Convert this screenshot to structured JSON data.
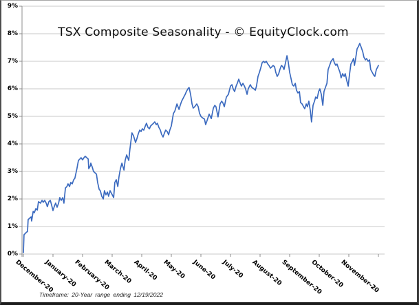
{
  "colors": {
    "line": "#3B6ABF",
    "grid": "#C9C9C9",
    "axis": "#8C8C8C",
    "title_text": "#0D0D0D",
    "label_text": "#000000",
    "footnote_text": "#1A1A1A"
  },
  "chart_data": {
    "type": "line",
    "title": "TSX Composite Seasonality - © EquityClock.com",
    "footnote": "Timeframe: 20-Year range ending 12/19/2022",
    "x_tick_labels": [
      "December-20",
      "January-20",
      "February-20",
      "March-20",
      "April-20",
      "May-20",
      "June-20",
      "July-20",
      "August-20",
      "September-20",
      "October-20",
      "November-20"
    ],
    "y_tick_labels": [
      "0%",
      "1%",
      "2%",
      "3%",
      "4%",
      "5%",
      "6%",
      "7%",
      "8%",
      "9%"
    ],
    "xlim": [
      0,
      12
    ],
    "ylim": [
      0,
      9
    ],
    "x_unit": "month index, 0 = start of December through 12 = end of November (fraction = position within month)",
    "y_unit": "%",
    "grid": "horizontal",
    "legend": "none",
    "points": [
      [
        0,
        0.05
      ],
      [
        0.02,
        0.7
      ],
      [
        0.09,
        0.78
      ],
      [
        0.14,
        0.82
      ],
      [
        0.16,
        1.25
      ],
      [
        0.21,
        1.3
      ],
      [
        0.26,
        1.35
      ],
      [
        0.28,
        1.2
      ],
      [
        0.33,
        1.55
      ],
      [
        0.37,
        1.5
      ],
      [
        0.42,
        1.65
      ],
      [
        0.47,
        1.6
      ],
      [
        0.51,
        1.9
      ],
      [
        0.58,
        1.85
      ],
      [
        0.63,
        1.95
      ],
      [
        0.67,
        1.88
      ],
      [
        0.72,
        1.95
      ],
      [
        0.77,
        1.85
      ],
      [
        0.81,
        1.72
      ],
      [
        0.86,
        1.9
      ],
      [
        0.91,
        1.95
      ],
      [
        0.95,
        1.8
      ],
      [
        1.0,
        1.58
      ],
      [
        1.05,
        1.75
      ],
      [
        1.09,
        1.85
      ],
      [
        1.14,
        1.7
      ],
      [
        1.19,
        1.85
      ],
      [
        1.23,
        2.05
      ],
      [
        1.28,
        1.95
      ],
      [
        1.33,
        2.05
      ],
      [
        1.37,
        1.85
      ],
      [
        1.42,
        2.4
      ],
      [
        1.47,
        2.45
      ],
      [
        1.51,
        2.55
      ],
      [
        1.56,
        2.45
      ],
      [
        1.6,
        2.6
      ],
      [
        1.65,
        2.55
      ],
      [
        1.7,
        2.7
      ],
      [
        1.74,
        2.75
      ],
      [
        1.81,
        3.1
      ],
      [
        1.86,
        3.4
      ],
      [
        1.91,
        3.45
      ],
      [
        1.95,
        3.5
      ],
      [
        2.0,
        3.42
      ],
      [
        2.05,
        3.5
      ],
      [
        2.09,
        3.55
      ],
      [
        2.14,
        3.5
      ],
      [
        2.19,
        3.45
      ],
      [
        2.21,
        3.1
      ],
      [
        2.26,
        3.2
      ],
      [
        2.28,
        3.3
      ],
      [
        2.33,
        3.15
      ],
      [
        2.37,
        3.0
      ],
      [
        2.42,
        2.95
      ],
      [
        2.47,
        2.9
      ],
      [
        2.51,
        2.6
      ],
      [
        2.56,
        2.35
      ],
      [
        2.6,
        2.3
      ],
      [
        2.65,
        2.1
      ],
      [
        2.7,
        2.0
      ],
      [
        2.74,
        2.3
      ],
      [
        2.79,
        2.15
      ],
      [
        2.84,
        2.25
      ],
      [
        2.88,
        2.1
      ],
      [
        2.93,
        2.3
      ],
      [
        2.98,
        2.2
      ],
      [
        3.05,
        2.05
      ],
      [
        3.09,
        2.6
      ],
      [
        3.14,
        2.7
      ],
      [
        3.19,
        2.45
      ],
      [
        3.23,
        2.8
      ],
      [
        3.28,
        3.1
      ],
      [
        3.33,
        3.3
      ],
      [
        3.4,
        3.05
      ],
      [
        3.44,
        3.4
      ],
      [
        3.49,
        3.6
      ],
      [
        3.56,
        3.4
      ],
      [
        3.6,
        3.8
      ],
      [
        3.67,
        4.4
      ],
      [
        3.72,
        4.3
      ],
      [
        3.79,
        4.05
      ],
      [
        3.84,
        4.2
      ],
      [
        3.88,
        4.35
      ],
      [
        3.93,
        4.5
      ],
      [
        3.98,
        4.45
      ],
      [
        4.02,
        4.55
      ],
      [
        4.07,
        4.5
      ],
      [
        4.12,
        4.65
      ],
      [
        4.16,
        4.75
      ],
      [
        4.21,
        4.6
      ],
      [
        4.26,
        4.55
      ],
      [
        4.3,
        4.65
      ],
      [
        4.35,
        4.7
      ],
      [
        4.4,
        4.75
      ],
      [
        4.44,
        4.8
      ],
      [
        4.49,
        4.7
      ],
      [
        4.53,
        4.75
      ],
      [
        4.58,
        4.6
      ],
      [
        4.63,
        4.5
      ],
      [
        4.67,
        4.35
      ],
      [
        4.72,
        4.25
      ],
      [
        4.77,
        4.4
      ],
      [
        4.81,
        4.5
      ],
      [
        4.86,
        4.45
      ],
      [
        4.91,
        4.33
      ],
      [
        4.95,
        4.5
      ],
      [
        5.0,
        4.65
      ],
      [
        5.07,
        5.1
      ],
      [
        5.12,
        5.2
      ],
      [
        5.19,
        5.45
      ],
      [
        5.26,
        5.25
      ],
      [
        5.3,
        5.4
      ],
      [
        5.35,
        5.55
      ],
      [
        5.42,
        5.7
      ],
      [
        5.47,
        5.8
      ],
      [
        5.51,
        5.9
      ],
      [
        5.56,
        6.0
      ],
      [
        5.6,
        6.05
      ],
      [
        5.65,
        5.8
      ],
      [
        5.7,
        5.45
      ],
      [
        5.74,
        5.3
      ],
      [
        5.79,
        5.35
      ],
      [
        5.86,
        5.45
      ],
      [
        5.91,
        5.35
      ],
      [
        5.95,
        5.12
      ],
      [
        6.0,
        5.0
      ],
      [
        6.05,
        4.95
      ],
      [
        6.12,
        4.9
      ],
      [
        6.16,
        4.7
      ],
      [
        6.21,
        4.85
      ],
      [
        6.28,
        5.08
      ],
      [
        6.35,
        4.92
      ],
      [
        6.42,
        5.3
      ],
      [
        6.47,
        5.4
      ],
      [
        6.51,
        5.35
      ],
      [
        6.58,
        4.98
      ],
      [
        6.65,
        5.45
      ],
      [
        6.7,
        5.55
      ],
      [
        6.74,
        5.5
      ],
      [
        6.79,
        5.35
      ],
      [
        6.86,
        5.7
      ],
      [
        6.93,
        5.8
      ],
      [
        7.0,
        6.1
      ],
      [
        7.05,
        6.15
      ],
      [
        7.09,
        6.0
      ],
      [
        7.14,
        5.9
      ],
      [
        7.19,
        6.1
      ],
      [
        7.23,
        6.2
      ],
      [
        7.28,
        6.35
      ],
      [
        7.33,
        6.2
      ],
      [
        7.37,
        6.1
      ],
      [
        7.42,
        6.2
      ],
      [
        7.47,
        6.1
      ],
      [
        7.51,
        6.0
      ],
      [
        7.56,
        5.8
      ],
      [
        7.6,
        6.0
      ],
      [
        7.67,
        6.15
      ],
      [
        7.72,
        6.05
      ],
      [
        7.79,
        6.0
      ],
      [
        7.84,
        5.95
      ],
      [
        7.88,
        6.1
      ],
      [
        7.93,
        6.45
      ],
      [
        7.98,
        6.6
      ],
      [
        8.02,
        6.75
      ],
      [
        8.07,
        6.95
      ],
      [
        8.12,
        7.0
      ],
      [
        8.16,
        6.95
      ],
      [
        8.21,
        7.0
      ],
      [
        8.26,
        6.9
      ],
      [
        8.3,
        6.85
      ],
      [
        8.35,
        6.75
      ],
      [
        8.4,
        6.8
      ],
      [
        8.44,
        6.85
      ],
      [
        8.49,
        6.8
      ],
      [
        8.53,
        6.6
      ],
      [
        8.58,
        6.45
      ],
      [
        8.63,
        6.55
      ],
      [
        8.67,
        6.7
      ],
      [
        8.72,
        6.85
      ],
      [
        8.77,
        6.8
      ],
      [
        8.81,
        6.7
      ],
      [
        8.86,
        6.95
      ],
      [
        8.91,
        7.2
      ],
      [
        8.95,
        7.0
      ],
      [
        9.0,
        6.6
      ],
      [
        9.05,
        6.35
      ],
      [
        9.09,
        6.15
      ],
      [
        9.14,
        6.1
      ],
      [
        9.19,
        6.2
      ],
      [
        9.23,
        5.95
      ],
      [
        9.28,
        5.85
      ],
      [
        9.33,
        5.9
      ],
      [
        9.37,
        5.5
      ],
      [
        9.42,
        5.45
      ],
      [
        9.47,
        5.35
      ],
      [
        9.51,
        5.28
      ],
      [
        9.56,
        5.45
      ],
      [
        9.6,
        5.35
      ],
      [
        9.65,
        5.55
      ],
      [
        9.7,
        5.2
      ],
      [
        9.74,
        4.8
      ],
      [
        9.79,
        5.4
      ],
      [
        9.84,
        5.55
      ],
      [
        9.88,
        5.7
      ],
      [
        9.93,
        5.65
      ],
      [
        9.98,
        5.9
      ],
      [
        10.02,
        6.0
      ],
      [
        10.07,
        5.8
      ],
      [
        10.12,
        5.4
      ],
      [
        10.16,
        5.9
      ],
      [
        10.21,
        6.05
      ],
      [
        10.26,
        6.2
      ],
      [
        10.3,
        6.7
      ],
      [
        10.35,
        6.85
      ],
      [
        10.4,
        7.0
      ],
      [
        10.47,
        7.1
      ],
      [
        10.51,
        6.95
      ],
      [
        10.56,
        6.85
      ],
      [
        10.6,
        6.9
      ],
      [
        10.65,
        6.75
      ],
      [
        10.7,
        6.6
      ],
      [
        10.74,
        6.4
      ],
      [
        10.79,
        6.55
      ],
      [
        10.84,
        6.45
      ],
      [
        10.88,
        6.55
      ],
      [
        10.93,
        6.3
      ],
      [
        10.98,
        6.1
      ],
      [
        11.02,
        6.5
      ],
      [
        11.07,
        6.9
      ],
      [
        11.12,
        7.0
      ],
      [
        11.16,
        7.1
      ],
      [
        11.19,
        6.85
      ],
      [
        11.23,
        7.1
      ],
      [
        11.28,
        7.45
      ],
      [
        11.33,
        7.55
      ],
      [
        11.37,
        7.65
      ],
      [
        11.42,
        7.5
      ],
      [
        11.47,
        7.35
      ],
      [
        11.51,
        7.15
      ],
      [
        11.56,
        7.05
      ],
      [
        11.6,
        7.1
      ],
      [
        11.65,
        7.0
      ],
      [
        11.7,
        7.05
      ],
      [
        11.74,
        6.7
      ],
      [
        11.79,
        6.6
      ],
      [
        11.84,
        6.5
      ],
      [
        11.88,
        6.45
      ],
      [
        11.93,
        6.7
      ],
      [
        11.98,
        6.8
      ],
      [
        12.0,
        6.85
      ]
    ]
  }
}
